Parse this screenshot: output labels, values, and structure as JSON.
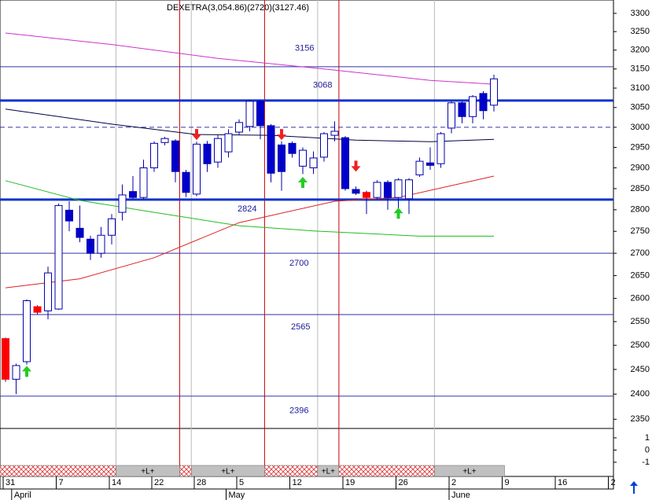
{
  "chart_data": {
    "type": "candlestick",
    "title": "DEXETRA(3,054.86)(2720)(3127.46)",
    "x": [
      0,
      1,
      2,
      3,
      4,
      5,
      6,
      7,
      8,
      9,
      10,
      11,
      12,
      13,
      14,
      15,
      16,
      17,
      18,
      19,
      20,
      21,
      22,
      23,
      24,
      25,
      26,
      27,
      28,
      29,
      30,
      31,
      32,
      33,
      34,
      35,
      36,
      37,
      38,
      39,
      40,
      41,
      42,
      43,
      44,
      45,
      46
    ],
    "open": [
      2514,
      2430,
      2466,
      2582,
      2573,
      2577,
      2799,
      2757,
      2732,
      2700,
      2741,
      2794,
      2843,
      2829,
      2900,
      2962,
      2966,
      2889,
      2837,
      2958,
      2914,
      2939,
      2988,
      3002,
      3066,
      3004,
      2956,
      2960,
      2904,
      2900,
      2926,
      2980,
      2974,
      2848,
      2841,
      2829,
      2865,
      2829,
      2826,
      2883,
      2912,
      2910,
      2998,
      3062,
      3027,
      3086,
      3056
    ],
    "high": [
      2516,
      2462,
      2598,
      2585,
      2670,
      2815,
      2820,
      2810,
      2740,
      2760,
      2790,
      2860,
      2880,
      2920,
      2965,
      2976,
      2970,
      2895,
      2964,
      2966,
      2980,
      2995,
      3020,
      3070,
      3070,
      3008,
      2965,
      2965,
      2950,
      2940,
      2988,
      3015,
      2978,
      2855,
      2845,
      2870,
      2870,
      2875,
      2875,
      2925,
      2950,
      2988,
      3066,
      3066,
      3082,
      3092,
      3135
    ],
    "low": [
      2425,
      2400,
      2460,
      2565,
      2555,
      2575,
      2750,
      2725,
      2685,
      2690,
      2720,
      2775,
      2825,
      2825,
      2890,
      2955,
      2865,
      2830,
      2832,
      2890,
      2900,
      2925,
      2980,
      2990,
      2970,
      2865,
      2845,
      2925,
      2885,
      2885,
      2915,
      2965,
      2845,
      2835,
      2790,
      2825,
      2800,
      2790,
      2790,
      2878,
      2895,
      2900,
      2985,
      3010,
      3010,
      3020,
      3040
    ],
    "close": [
      2430,
      2458,
      2595,
      2570,
      2656,
      2810,
      2774,
      2736,
      2700,
      2741,
      2779,
      2835,
      2829,
      2900,
      2960,
      2972,
      2891,
      2841,
      2958,
      2910,
      2972,
      2984,
      3012,
      3066,
      3004,
      2887,
      2891,
      2935,
      2943,
      2924,
      2984,
      2990,
      2850,
      2839,
      2829,
      2865,
      2829,
      2871,
      2871,
      2916,
      2906,
      2984,
      3062,
      3027,
      3078,
      3042,
      3124
    ],
    "fills": [
      "#ff0000",
      "#ffffff",
      "#ffffff",
      "#ff0000",
      "#ffffff",
      "#ffffff",
      "#0000cc",
      "#0000cc",
      "#0000cc",
      "#ffffff",
      "#ffffff",
      "#ffffff",
      "#0000cc",
      "#ffffff",
      "#ffffff",
      "#ffffff",
      "#0000cc",
      "#0000cc",
      "#ffffff",
      "#0000cc",
      "#ffffff",
      "#ffffff",
      "#ffffff",
      "#ffffff",
      "#0000cc",
      "#0000cc",
      "#0000cc",
      "#0000cc",
      "#ffffff",
      "#ffffff",
      "#ffffff",
      "#ffffff",
      "#0000cc",
      "#0000cc",
      "#ff0000",
      "#ffffff",
      "#0000cc",
      "#ffffff",
      "#ffffff",
      "#ffffff",
      "#0000cc",
      "#ffffff",
      "#ffffff",
      "#0000cc",
      "#ffffff",
      "#0000cc",
      "#ffffff"
    ],
    "series": [
      {
        "color": "#cc33cc",
        "x": [
          0,
          10,
          20,
          30,
          40,
          46
        ],
        "values": [
          3246,
          3215,
          3178,
          3150,
          3120,
          3110
        ]
      },
      {
        "color": "#000044",
        "x": [
          0,
          10,
          18,
          25,
          33,
          40,
          46
        ],
        "values": [
          3046,
          3008,
          2982,
          2980,
          2968,
          2964,
          2970
        ]
      },
      {
        "color": "#22bb22",
        "x": [
          0,
          7,
          14,
          22,
          29,
          39,
          46
        ],
        "values": [
          2869,
          2822,
          2794,
          2763,
          2751,
          2739,
          2739
        ]
      },
      {
        "color": "#dd2222",
        "x": [
          0,
          7,
          14,
          22,
          31,
          37,
          46
        ],
        "values": [
          2623,
          2643,
          2690,
          2770,
          2820,
          2829,
          2880
        ]
      }
    ],
    "levels": [
      {
        "value": 3156,
        "width": 1
      },
      {
        "value": 3068,
        "width": 3
      },
      {
        "value": 3000,
        "width": 1,
        "dashed": true
      },
      {
        "value": 2824,
        "width": 3
      },
      {
        "value": 2700,
        "width": 1
      },
      {
        "value": 2565,
        "width": 1
      },
      {
        "value": 2396,
        "width": 1
      }
    ],
    "arrows": [
      {
        "x": 2,
        "at": 2446,
        "direction": "up"
      },
      {
        "x": 28,
        "at": 2865,
        "direction": "up"
      },
      {
        "x": 37,
        "at": 2792,
        "direction": "up"
      },
      {
        "x": 18,
        "at": 2982,
        "direction": "down"
      },
      {
        "x": 26,
        "at": 2982,
        "direction": "down"
      },
      {
        "x": 33,
        "at": 2904,
        "direction": "down"
      }
    ],
    "signals": [
      {
        "start": -0.52,
        "end": 10.4,
        "color": "#dd3333"
      },
      {
        "start": 10.4,
        "end": 16.4,
        "color": "#c0c0c0",
        "label": "+L+"
      },
      {
        "start": 16.4,
        "end": 17.5,
        "color": "#dd3333"
      },
      {
        "start": 17.5,
        "end": 24.4,
        "color": "#c0c0c0",
        "label": "+L+"
      },
      {
        "start": 24.4,
        "end": 29.4,
        "color": "#dd3333"
      },
      {
        "start": 29.4,
        "end": 31.4,
        "color": "#c0c0c0",
        "label": "+L+"
      },
      {
        "start": 31.4,
        "end": 40.4,
        "color": "#dd3333"
      },
      {
        "start": 40.4,
        "end": 47,
        "color": "#c0c0c0",
        "label": "+L+"
      }
    ],
    "log_scale": true,
    "xlim": [
      -0.52,
      57.26
    ],
    "ylim": [
      2332,
      3337
    ],
    "yticks": [
      3300,
      3250,
      3200,
      3150,
      3100,
      3050,
      3000,
      2950,
      2900,
      2850,
      2800,
      2750,
      2700,
      2650,
      2600,
      2550,
      2500,
      2450,
      2400,
      2350
    ],
    "y2lim": [
      -1.26,
      1.77
    ],
    "y2ticks": [
      1,
      0,
      -1
    ],
    "xticks": [
      {
        "value": 0,
        "label": "31"
      },
      {
        "value": 5,
        "label": "7"
      },
      {
        "value": 10,
        "label": "14"
      },
      {
        "value": 14,
        "label": "22"
      },
      {
        "value": 18,
        "label": "28"
      },
      {
        "value": 22,
        "label": "5"
      },
      {
        "value": 27,
        "label": "12"
      },
      {
        "value": 32,
        "label": "19"
      },
      {
        "value": 37,
        "label": "26"
      },
      {
        "value": 42,
        "label": "2"
      },
      {
        "value": 47,
        "label": "9"
      },
      {
        "value": 52,
        "label": "16"
      },
      {
        "value": 57,
        "label": "2"
      }
    ],
    "months": [
      {
        "value": 0.8,
        "label": "April"
      },
      {
        "value": 21,
        "label": "May"
      },
      {
        "value": 42,
        "label": "June"
      }
    ]
  }
}
